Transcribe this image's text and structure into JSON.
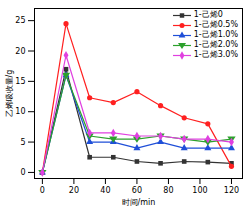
{
  "chart_data": {
    "type": "line",
    "x_label": "时间/min",
    "y_label": "乙烯吸收量/g",
    "x": [
      0,
      15,
      30,
      45,
      60,
      75,
      90,
      105,
      120
    ],
    "series": [
      {
        "name": "1-己烯0",
        "color": "#333333",
        "marker": "square",
        "line_style": "solid",
        "values": [
          0,
          17,
          2.5,
          2.5,
          1.8,
          1.5,
          1.8,
          1.7,
          1.5
        ]
      },
      {
        "name": "1-己烯0.5%",
        "color": "#ff2020",
        "marker": "circle",
        "line_style": "solid",
        "values": [
          0,
          24.5,
          12.3,
          11.5,
          13.3,
          11,
          9,
          8,
          1
        ]
      },
      {
        "name": "1-己烯1.0%",
        "color": "#1f4fd8",
        "marker": "triangle",
        "line_style": "solid",
        "values": [
          0,
          16,
          5,
          5,
          4,
          5,
          4,
          4,
          4
        ]
      },
      {
        "name": "1-己烯2.0%",
        "color": "#2ca02c",
        "marker": "triangle-down",
        "line_style": "solid",
        "values": [
          0,
          16,
          6,
          5.5,
          5.5,
          6,
          5.5,
          5,
          5.5
        ]
      },
      {
        "name": "1-己烯3.0%",
        "color": "#e040e0",
        "marker": "diamond",
        "line_style": "solid",
        "values": [
          0,
          19.3,
          6.5,
          6.5,
          6,
          6,
          5.5,
          5.5,
          5
        ]
      }
    ],
    "xlim": [
      -5,
      127
    ],
    "xticks": [
      0,
      20,
      40,
      60,
      80,
      100,
      120
    ],
    "ylim": [
      -1,
      27
    ],
    "yticks": [
      0,
      5,
      10,
      15,
      20,
      25
    ],
    "grid": false,
    "legend": "top-right"
  }
}
